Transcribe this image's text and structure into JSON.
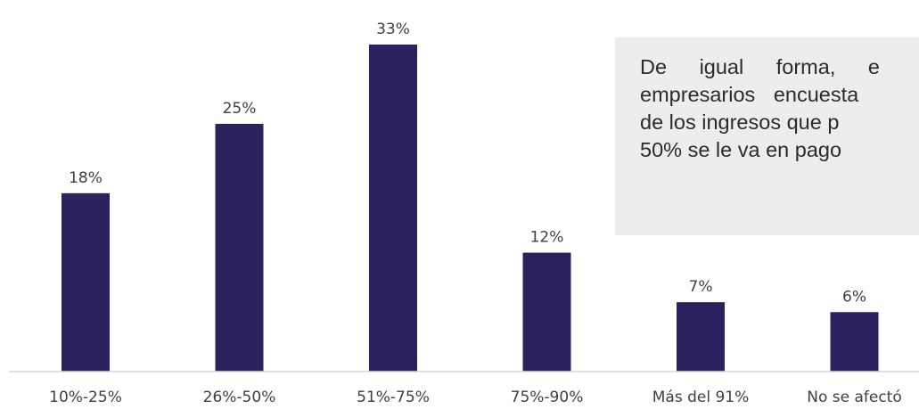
{
  "chart_data": {
    "type": "bar",
    "categories": [
      "10%-25%",
      "26%-50%",
      "51%-75%",
      "75%-90%",
      "Más del 91%",
      "No se afectó"
    ],
    "values": [
      18,
      25,
      33,
      12,
      7,
      6
    ],
    "value_labels": [
      "18%",
      "25%",
      "33%",
      "12%",
      "7%",
      "6%"
    ],
    "ylim": [
      0,
      33
    ],
    "grid": false,
    "bar_color": "#2a235f"
  },
  "callout": {
    "lines": [
      "De igual forma, e",
      "empresarios encuesta",
      "de los ingresos que p",
      "50% se le va en pago"
    ]
  }
}
